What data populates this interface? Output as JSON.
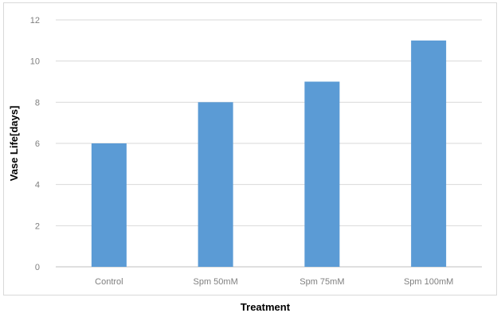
{
  "chart_data": {
    "type": "bar",
    "categories": [
      "Control",
      "Spm 50mM",
      "Spm 75mM",
      "Spm 100mM"
    ],
    "values": [
      6,
      8,
      9,
      11
    ],
    "title": "",
    "xlabel": "Treatment",
    "ylabel": "Vase Life[days]",
    "ylim": [
      0,
      12
    ],
    "yticks": [
      0,
      2,
      4,
      6,
      8,
      10,
      12
    ],
    "grid": true,
    "legend": "none",
    "colors": {
      "bar": "#5b9bd5",
      "grid": "#d9d9d9",
      "axis": "#bfbfbf"
    }
  }
}
